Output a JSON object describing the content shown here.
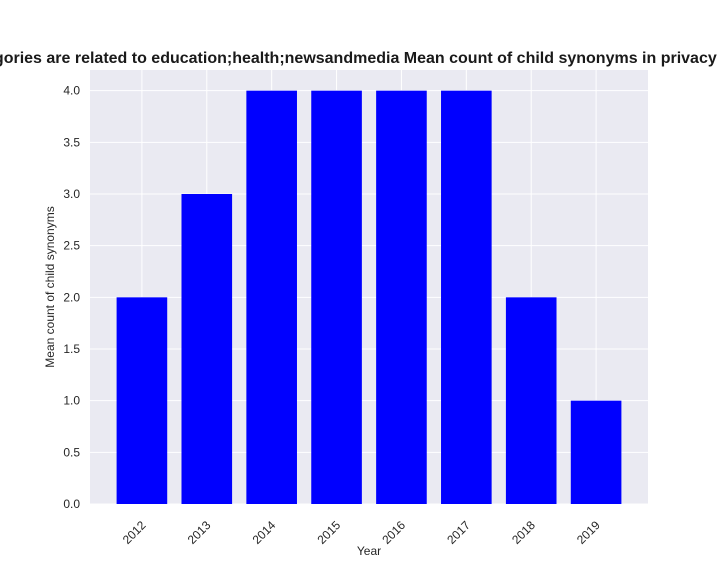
{
  "chart_data": {
    "type": "bar",
    "title": "Categories are related to education;health;newsandmedia Mean count of child synonyms in privacy policies",
    "xlabel": "Year",
    "ylabel": "Mean count of child synonyms",
    "categories": [
      "2012",
      "2013",
      "2014",
      "2015",
      "2016",
      "2017",
      "2018",
      "2019"
    ],
    "values": [
      2,
      3,
      4,
      4,
      4,
      4,
      2,
      1
    ],
    "yticks": [
      "0.0",
      "0.5",
      "1.0",
      "1.5",
      "2.0",
      "2.5",
      "3.0",
      "3.5",
      "4.0"
    ],
    "ylim": [
      0,
      4.2
    ],
    "grid": true,
    "legend": "none",
    "bar_color": "#0000ff",
    "plot_background": "#eaeaf2",
    "grid_color": "#ffffff"
  }
}
